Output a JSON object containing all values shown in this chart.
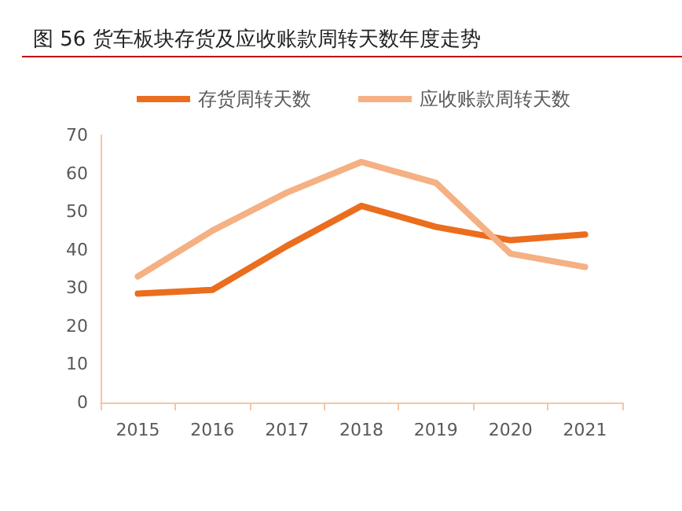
{
  "chart_data": {
    "type": "line",
    "title": "图 56 货车板块存货及应收账款周转天数年度走势",
    "categories": [
      "2015",
      "2016",
      "2017",
      "2018",
      "2019",
      "2020",
      "2021"
    ],
    "series": [
      {
        "name": "存货周转天数",
        "color": "#eb6d1e",
        "values": [
          28.5,
          29.5,
          41,
          51.5,
          46,
          42.5,
          44
        ]
      },
      {
        "name": "应收账款周转天数",
        "color": "#f5b083",
        "values": [
          33,
          45,
          55,
          63,
          57.5,
          39,
          35.5
        ]
      }
    ],
    "ylim": [
      0,
      70
    ],
    "yticks": [
      0,
      10,
      20,
      30,
      40,
      50,
      60,
      70
    ],
    "grid": false,
    "legend": "top",
    "marker": "none",
    "line_style": "solid"
  }
}
